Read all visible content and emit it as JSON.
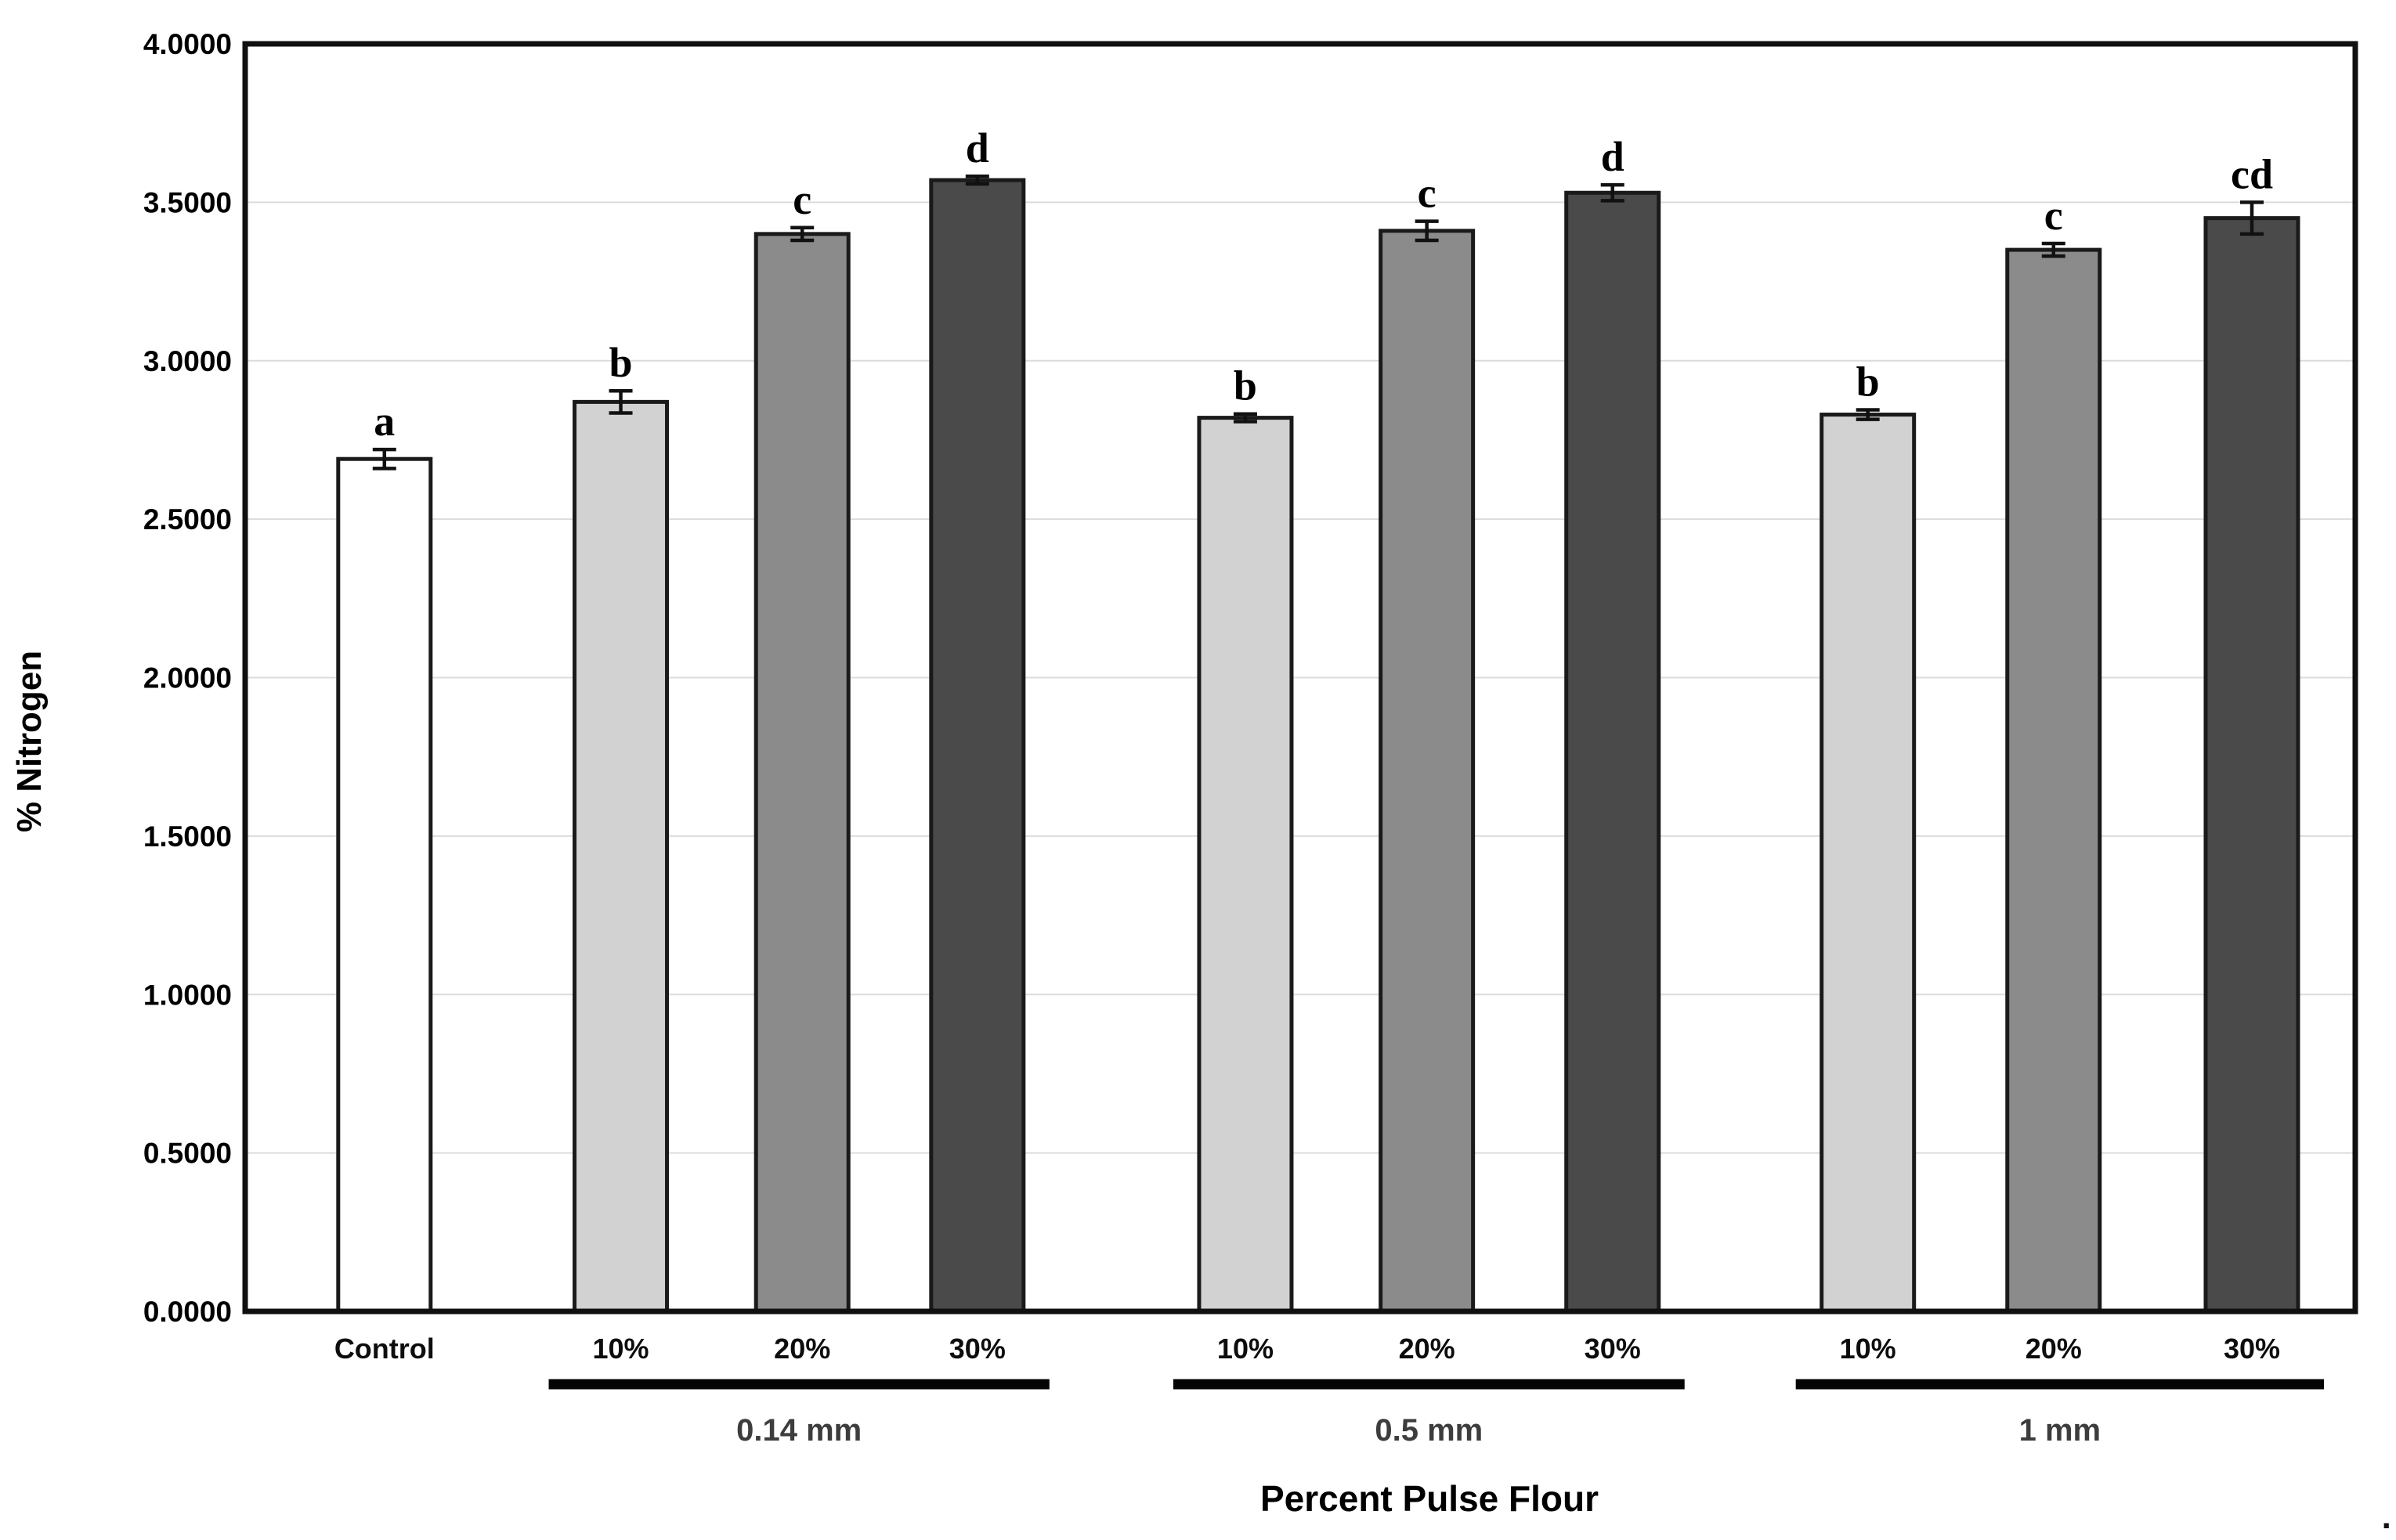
{
  "chart_data": {
    "type": "bar",
    "title": "",
    "xlabel": "Percent Pulse Flour",
    "ylabel": "% Nitrogen",
    "ylim": [
      0,
      4
    ],
    "ytick_step": 0.5,
    "ytick_labels": [
      "0.0000",
      "0.5000",
      "1.0000",
      "1.5000",
      "2.0000",
      "2.5000",
      "3.0000",
      "3.5000",
      "4.0000"
    ],
    "grid": "horizontal-only",
    "legend": "none",
    "categories": [
      "Control",
      "10%",
      "20%",
      "30%",
      "10%",
      "20%",
      "30%",
      "10%",
      "20%",
      "30%"
    ],
    "bars": [
      {
        "label": "Control",
        "group": "Control",
        "value": 2.69,
        "error": 0.03,
        "sig": "a",
        "fill": "#ffffff"
      },
      {
        "label": "10%",
        "group": "0.14 mm",
        "value": 2.87,
        "error": 0.035,
        "sig": "b",
        "fill": "#d2d2d2"
      },
      {
        "label": "20%",
        "group": "0.14 mm",
        "value": 3.4,
        "error": 0.02,
        "sig": "c",
        "fill": "#8b8b8b"
      },
      {
        "label": "30%",
        "group": "0.14 mm",
        "value": 3.57,
        "error": 0.012,
        "sig": "d",
        "fill": "#4a4a4a"
      },
      {
        "label": "10%",
        "group": "0.5 mm",
        "value": 2.82,
        "error": 0.012,
        "sig": "b",
        "fill": "#d2d2d2"
      },
      {
        "label": "20%",
        "group": "0.5 mm",
        "value": 3.41,
        "error": 0.03,
        "sig": "c",
        "fill": "#8b8b8b"
      },
      {
        "label": "30%",
        "group": "0.5 mm",
        "value": 3.53,
        "error": 0.025,
        "sig": "d",
        "fill": "#4a4a4a"
      },
      {
        "label": "10%",
        "group": "1 mm",
        "value": 2.83,
        "error": 0.015,
        "sig": "b",
        "fill": "#d2d2d2"
      },
      {
        "label": "20%",
        "group": "1 mm",
        "value": 3.35,
        "error": 0.02,
        "sig": "c",
        "fill": "#8b8b8b"
      },
      {
        "label": "30%",
        "group": "1 mm",
        "value": 3.45,
        "error": 0.05,
        "sig": "cd",
        "fill": "#4a4a4a"
      }
    ],
    "group_labels": [
      "0.14 mm",
      "0.5 mm",
      "1 mm"
    ]
  },
  "colors": {
    "background": "#ffffff",
    "bar_fill_10pct": "#d2d2d2",
    "bar_fill_20pct": "#8b8b8b",
    "bar_fill_30pct": "#4a4a4a",
    "bar_fill_control": "#ffffff",
    "bar_border": "#1a1a1a",
    "gridline": "#dcdcdc",
    "frame": "#101010"
  },
  "misc": {
    "trailing_period": "."
  }
}
